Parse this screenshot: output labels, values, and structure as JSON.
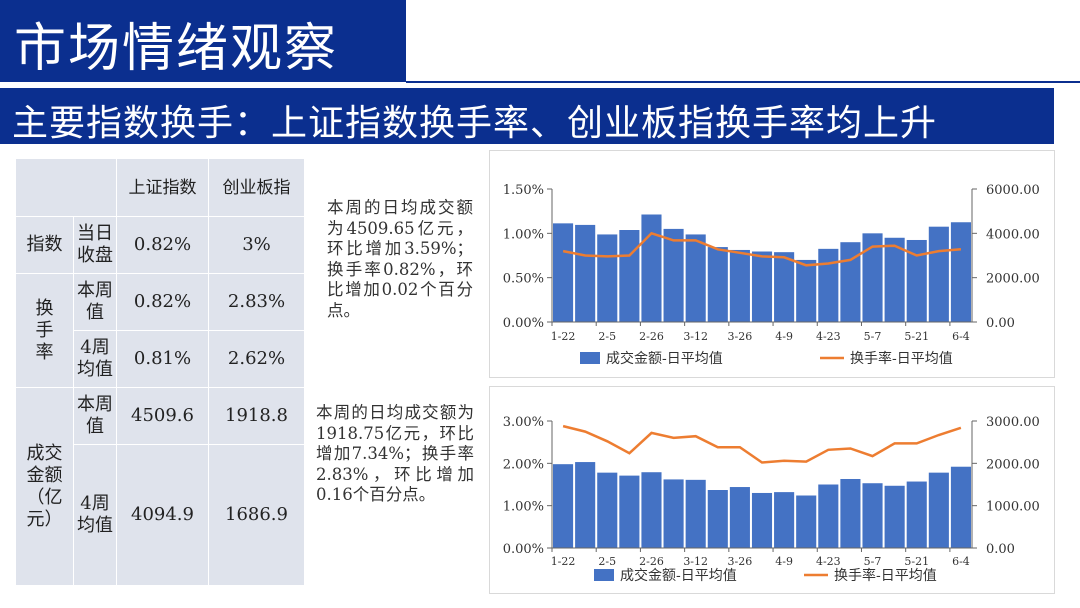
{
  "page": {
    "title": "市场情绪观察",
    "subtitle": "主要指数换手：上证指数换手率、创业板指换手率均上升"
  },
  "table": {
    "col_headers": [
      "上证指数",
      "创业板指"
    ],
    "group_index": "指数",
    "group_turnover": "换手率",
    "group_volume": "成交金额（亿元）",
    "row_close": {
      "label": "当日收盘",
      "sh": "0.82%",
      "cy": "3%"
    },
    "row_turn_week": {
      "label": "本周值",
      "sh": "0.82%",
      "cy": "2.83%"
    },
    "row_turn_4w": {
      "label": "4周均值",
      "sh": "0.81%",
      "cy": "2.62%"
    },
    "row_vol_week": {
      "label": "本周值",
      "sh": "4509.6",
      "cy": "1918.8"
    },
    "row_vol_4w": {
      "label": "4周均值",
      "sh": "4094.9",
      "cy": "1686.9"
    }
  },
  "notes": {
    "sh": "本周的日均成交额为4509.65亿元，环比增加3.59%；换手率0.82%，环比增加0.02个百分点。",
    "cy": "本周的日均成交额为1918.75亿元，环比增加7.34%；换手率2.83%，环比增加0.16个百分点。"
  },
  "colors": {
    "bar": "#4472c4",
    "line": "#ed7d31",
    "navy": "#0b2f8f"
  },
  "chart_data": [
    {
      "type": "bar+line",
      "x_labels": [
        "1-22",
        "2-5",
        "2-26",
        "3-12",
        "3-26",
        "4-9",
        "4-23",
        "5-7",
        "5-21",
        "6-4"
      ],
      "left_axis": {
        "ticks": [
          "0.00%",
          "0.50%",
          "1.00%",
          "1.50%"
        ],
        "min": 0,
        "max": 1.5
      },
      "right_axis": {
        "ticks": [
          "0.00",
          "2000.00",
          "4000.00",
          "6000.00"
        ],
        "min": 0,
        "max": 6000
      },
      "series": [
        {
          "name": "成交金额-日平均值",
          "type": "bar",
          "axis": "right",
          "values": [
            4450,
            4380,
            3950,
            4150,
            4850,
            4200,
            3950,
            3380,
            3250,
            3180,
            3150,
            2800,
            3300,
            3600,
            4000,
            3800,
            3700,
            4300,
            4500
          ]
        },
        {
          "name": "换手率-日平均值",
          "type": "line",
          "axis": "left",
          "values": [
            0.8,
            0.75,
            0.74,
            0.75,
            1.0,
            0.92,
            0.92,
            0.82,
            0.78,
            0.74,
            0.73,
            0.64,
            0.66,
            0.7,
            0.85,
            0.86,
            0.75,
            0.8,
            0.82
          ]
        }
      ]
    },
    {
      "type": "bar+line",
      "x_labels": [
        "1-22",
        "2-5",
        "2-26",
        "3-12",
        "3-26",
        "4-9",
        "4-23",
        "5-7",
        "5-21",
        "6-4"
      ],
      "left_axis": {
        "ticks": [
          "0.00%",
          "1.00%",
          "2.00%",
          "3.00%"
        ],
        "min": 0,
        "max": 3
      },
      "right_axis": {
        "ticks": [
          "0.00",
          "1000.00",
          "2000.00",
          "3000.00"
        ],
        "min": 0,
        "max": 3000
      },
      "series": [
        {
          "name": "成交金额-日平均值",
          "type": "bar",
          "axis": "right",
          "values": [
            1980,
            2030,
            1780,
            1710,
            1790,
            1620,
            1610,
            1370,
            1440,
            1300,
            1320,
            1240,
            1500,
            1630,
            1530,
            1470,
            1570,
            1780,
            1920
          ]
        },
        {
          "name": "换手率-日平均值",
          "type": "line",
          "axis": "left",
          "values": [
            2.88,
            2.75,
            2.52,
            2.24,
            2.72,
            2.6,
            2.64,
            2.38,
            2.38,
            2.02,
            2.06,
            2.04,
            2.32,
            2.35,
            2.17,
            2.47,
            2.47,
            2.67,
            2.84
          ]
        }
      ]
    }
  ]
}
